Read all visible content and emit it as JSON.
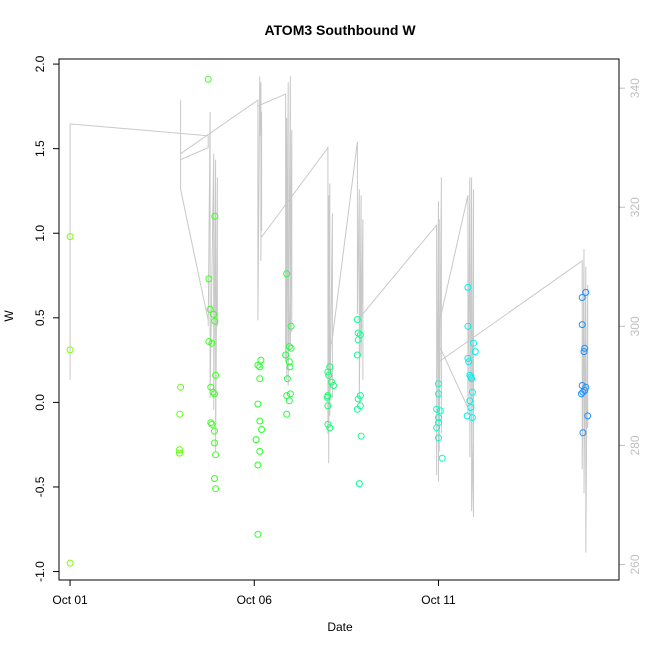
{
  "chart_data": {
    "type": "scatter",
    "title": "ATOM3 Southbound W",
    "xlabel": "Date",
    "ylabel": "W",
    "x_ticks": [
      "Oct 01",
      "Oct 06",
      "Oct 11"
    ],
    "x_tick_values": [
      1,
      6,
      11
    ],
    "xlim": [
      0.7,
      15.9
    ],
    "ylim": [
      -1.05,
      2.03
    ],
    "y_ticks": [
      -1.0,
      -0.5,
      0.0,
      0.5,
      1.0,
      1.5,
      2.0
    ],
    "y_tick_labels": [
      "-1.0",
      "-0.5",
      "0.0",
      "0.5",
      "1.0",
      "1.5",
      "2.0"
    ],
    "y2_ticks": [
      260,
      280,
      300,
      320,
      340
    ],
    "y2lim": [
      257.4,
      344.9
    ],
    "y2_color": "#c0c0c0",
    "grid": false,
    "legend": "none",
    "points": [
      {
        "x": 1.0,
        "y": 0.98,
        "color": "#7fff00"
      },
      {
        "x": 1.0,
        "y": 0.31,
        "color": "#7fff00"
      },
      {
        "x": 1.0,
        "y": -0.95,
        "color": "#7fff00"
      },
      {
        "x": 4.0,
        "y": 0.09,
        "color": "#60ff10"
      },
      {
        "x": 3.98,
        "y": -0.07,
        "color": "#60ff10"
      },
      {
        "x": 3.97,
        "y": -0.28,
        "color": "#60ff10"
      },
      {
        "x": 3.97,
        "y": -0.3,
        "color": "#60ff10"
      },
      {
        "x": 4.75,
        "y": 1.91,
        "color": "#3dff1f"
      },
      {
        "x": 4.93,
        "y": 1.1,
        "color": "#3dff1f"
      },
      {
        "x": 4.77,
        "y": 0.73,
        "color": "#3dff1f"
      },
      {
        "x": 4.8,
        "y": 0.55,
        "color": "#3dff1f"
      },
      {
        "x": 4.9,
        "y": 0.52,
        "color": "#3dff1f"
      },
      {
        "x": 4.93,
        "y": 0.48,
        "color": "#3dff1f"
      },
      {
        "x": 4.77,
        "y": 0.36,
        "color": "#3dff1f"
      },
      {
        "x": 4.85,
        "y": 0.35,
        "color": "#3dff1f"
      },
      {
        "x": 4.95,
        "y": 0.16,
        "color": "#3dff1f"
      },
      {
        "x": 4.82,
        "y": 0.09,
        "color": "#3dff1f"
      },
      {
        "x": 4.88,
        "y": 0.06,
        "color": "#3dff1f"
      },
      {
        "x": 4.92,
        "y": 0.05,
        "color": "#3dff1f"
      },
      {
        "x": 4.82,
        "y": -0.12,
        "color": "#3dff1f"
      },
      {
        "x": 4.85,
        "y": -0.13,
        "color": "#3dff1f"
      },
      {
        "x": 4.92,
        "y": -0.17,
        "color": "#3dff1f"
      },
      {
        "x": 4.92,
        "y": -0.24,
        "color": "#3dff1f"
      },
      {
        "x": 4.95,
        "y": -0.31,
        "color": "#3dff1f"
      },
      {
        "x": 4.92,
        "y": -0.45,
        "color": "#3dff1f"
      },
      {
        "x": 4.95,
        "y": -0.51,
        "color": "#3dff1f"
      },
      {
        "x": 6.18,
        "y": 0.25,
        "color": "#2aff2a"
      },
      {
        "x": 6.1,
        "y": 0.22,
        "color": "#2aff2a"
      },
      {
        "x": 6.15,
        "y": 0.21,
        "color": "#2aff2a"
      },
      {
        "x": 6.15,
        "y": 0.14,
        "color": "#2aff2a"
      },
      {
        "x": 6.1,
        "y": -0.01,
        "color": "#2aff2a"
      },
      {
        "x": 6.15,
        "y": -0.11,
        "color": "#2aff2a"
      },
      {
        "x": 6.2,
        "y": -0.16,
        "color": "#2aff2a"
      },
      {
        "x": 6.05,
        "y": -0.22,
        "color": "#2aff2a"
      },
      {
        "x": 6.15,
        "y": -0.29,
        "color": "#2aff2a"
      },
      {
        "x": 6.1,
        "y": -0.37,
        "color": "#2aff2a"
      },
      {
        "x": 6.1,
        "y": -0.78,
        "color": "#2aff2a"
      },
      {
        "x": 6.88,
        "y": 0.76,
        "color": "#20ff40"
      },
      {
        "x": 7.0,
        "y": 0.45,
        "color": "#20ff40"
      },
      {
        "x": 6.95,
        "y": 0.33,
        "color": "#20ff40"
      },
      {
        "x": 7.0,
        "y": 0.32,
        "color": "#20ff40"
      },
      {
        "x": 6.85,
        "y": 0.28,
        "color": "#20ff40"
      },
      {
        "x": 6.95,
        "y": 0.24,
        "color": "#20ff40"
      },
      {
        "x": 6.97,
        "y": 0.21,
        "color": "#20ff40"
      },
      {
        "x": 6.9,
        "y": 0.14,
        "color": "#20ff40"
      },
      {
        "x": 6.88,
        "y": 0.04,
        "color": "#20ff40"
      },
      {
        "x": 6.98,
        "y": 0.05,
        "color": "#20ff40"
      },
      {
        "x": 6.95,
        "y": 0.01,
        "color": "#20ff40"
      },
      {
        "x": 6.88,
        "y": -0.07,
        "color": "#20ff40"
      },
      {
        "x": 8.05,
        "y": 0.21,
        "color": "#14ff70"
      },
      {
        "x": 8.0,
        "y": 0.18,
        "color": "#14ff70"
      },
      {
        "x": 8.02,
        "y": 0.16,
        "color": "#14ff70"
      },
      {
        "x": 8.1,
        "y": 0.12,
        "color": "#14ff70"
      },
      {
        "x": 8.15,
        "y": 0.1,
        "color": "#14ff70"
      },
      {
        "x": 7.98,
        "y": 0.03,
        "color": "#14ff70"
      },
      {
        "x": 8.0,
        "y": 0.04,
        "color": "#14ff70"
      },
      {
        "x": 8.0,
        "y": -0.02,
        "color": "#14ff70"
      },
      {
        "x": 8.0,
        "y": -0.13,
        "color": "#14ff70"
      },
      {
        "x": 8.05,
        "y": -0.15,
        "color": "#14ff70"
      },
      {
        "x": 8.8,
        "y": 0.49,
        "color": "#0fff90"
      },
      {
        "x": 8.82,
        "y": 0.41,
        "color": "#0fff90"
      },
      {
        "x": 8.88,
        "y": 0.4,
        "color": "#0fff90"
      },
      {
        "x": 8.82,
        "y": 0.37,
        "color": "#0fff90"
      },
      {
        "x": 8.8,
        "y": 0.28,
        "color": "#0fff90"
      },
      {
        "x": 8.88,
        "y": 0.04,
        "color": "#0fff90"
      },
      {
        "x": 8.82,
        "y": 0.02,
        "color": "#0fff90"
      },
      {
        "x": 8.88,
        "y": -0.02,
        "color": "#0fff90"
      },
      {
        "x": 8.8,
        "y": -0.04,
        "color": "#0fff90"
      },
      {
        "x": 8.9,
        "y": -0.2,
        "color": "#0fff90"
      },
      {
        "x": 8.85,
        "y": -0.48,
        "color": "#0fff90"
      },
      {
        "x": 11.0,
        "y": 0.11,
        "color": "#00ffc8"
      },
      {
        "x": 11.0,
        "y": 0.05,
        "color": "#00ffc8"
      },
      {
        "x": 10.95,
        "y": -0.04,
        "color": "#00ffc8"
      },
      {
        "x": 11.05,
        "y": -0.05,
        "color": "#00ffc8"
      },
      {
        "x": 11.0,
        "y": -0.09,
        "color": "#00ffc8"
      },
      {
        "x": 11.0,
        "y": -0.12,
        "color": "#00ffc8"
      },
      {
        "x": 10.95,
        "y": -0.15,
        "color": "#00ffc8"
      },
      {
        "x": 11.0,
        "y": -0.21,
        "color": "#00ffc8"
      },
      {
        "x": 11.1,
        "y": -0.33,
        "color": "#00ffc8"
      },
      {
        "x": 11.8,
        "y": 0.68,
        "color": "#00f0f0"
      },
      {
        "x": 11.8,
        "y": 0.45,
        "color": "#00f0f0"
      },
      {
        "x": 11.95,
        "y": 0.35,
        "color": "#00f0f0"
      },
      {
        "x": 12.0,
        "y": 0.3,
        "color": "#00f0f0"
      },
      {
        "x": 11.8,
        "y": 0.26,
        "color": "#00f0f0"
      },
      {
        "x": 11.82,
        "y": 0.24,
        "color": "#00f0f0"
      },
      {
        "x": 11.85,
        "y": 0.16,
        "color": "#00f0f0"
      },
      {
        "x": 11.88,
        "y": 0.15,
        "color": "#00f0f0"
      },
      {
        "x": 11.9,
        "y": 0.14,
        "color": "#00f0f0"
      },
      {
        "x": 11.92,
        "y": 0.06,
        "color": "#00f0f0"
      },
      {
        "x": 11.85,
        "y": 0.01,
        "color": "#00f0f0"
      },
      {
        "x": 11.88,
        "y": -0.03,
        "color": "#00f0f0"
      },
      {
        "x": 11.78,
        "y": -0.08,
        "color": "#00f0f0"
      },
      {
        "x": 11.92,
        "y": -0.09,
        "color": "#00f0f0"
      },
      {
        "x": 14.9,
        "y": 0.62,
        "color": "#1e90ff"
      },
      {
        "x": 15.0,
        "y": 0.65,
        "color": "#1e90ff"
      },
      {
        "x": 14.9,
        "y": 0.46,
        "color": "#1e90ff"
      },
      {
        "x": 14.97,
        "y": 0.32,
        "color": "#1e90ff"
      },
      {
        "x": 14.95,
        "y": 0.3,
        "color": "#1e90ff"
      },
      {
        "x": 14.9,
        "y": 0.1,
        "color": "#1e90ff"
      },
      {
        "x": 15.0,
        "y": 0.09,
        "color": "#1e90ff"
      },
      {
        "x": 14.92,
        "y": 0.06,
        "color": "#1e90ff"
      },
      {
        "x": 14.97,
        "y": 0.07,
        "color": "#1e90ff"
      },
      {
        "x": 14.88,
        "y": 0.05,
        "color": "#1e90ff"
      },
      {
        "x": 15.05,
        "y": -0.08,
        "color": "#1e90ff"
      },
      {
        "x": 14.92,
        "y": -0.18,
        "color": "#1e90ff"
      }
    ],
    "secondary_line": {
      "color": "#c8c8c8",
      "axis": "right",
      "segments": [
        [
          [
            1.0,
            291
          ],
          [
            1.0,
            334
          ],
          [
            4.75,
            332
          ],
          [
            4.75,
            330
          ],
          [
            4.0,
            328
          ],
          [
            4.0,
            338
          ],
          [
            4.0,
            323
          ],
          [
            4.75,
            301
          ]
        ],
        [
          [
            4.75,
            300
          ],
          [
            4.8,
            336
          ],
          [
            4.8,
            288
          ],
          [
            4.9,
            329
          ],
          [
            4.9,
            286
          ],
          [
            4.95,
            328
          ],
          [
            4.95,
            279
          ],
          [
            5.0,
            325
          ],
          [
            5.0,
            300
          ]
        ],
        [
          [
            4.0,
            329
          ],
          [
            6.1,
            338
          ],
          [
            6.1,
            301
          ],
          [
            6.15,
            342
          ],
          [
            6.15,
            332
          ],
          [
            6.18,
            341
          ],
          [
            6.18,
            311
          ],
          [
            6.2,
            336
          ],
          [
            6.2,
            316
          ]
        ],
        [
          [
            6.1,
            337
          ],
          [
            6.85,
            339
          ],
          [
            6.85,
            294
          ],
          [
            6.88,
            335
          ],
          [
            6.88,
            291
          ],
          [
            6.92,
            341
          ],
          [
            6.92,
            290
          ],
          [
            6.98,
            342
          ],
          [
            6.98,
            297
          ],
          [
            7.02,
            333
          ],
          [
            7.02,
            299
          ]
        ],
        [
          [
            6.2,
            315
          ],
          [
            8.0,
            330
          ],
          [
            8.0,
            282
          ],
          [
            8.02,
            322
          ],
          [
            8.02,
            277
          ],
          [
            8.05,
            324
          ],
          [
            8.05,
            285
          ],
          [
            8.12,
            319
          ],
          [
            8.12,
            288
          ]
        ],
        [
          [
            6.92,
            313
          ],
          [
            6.97,
            296
          ]
        ],
        [
          [
            8.1,
            297
          ],
          [
            8.8,
            331
          ],
          [
            8.8,
            302
          ],
          [
            8.85,
            323
          ],
          [
            8.85,
            287
          ],
          [
            8.9,
            322
          ],
          [
            8.9,
            295
          ],
          [
            8.95,
            318
          ],
          [
            8.95,
            291
          ]
        ],
        [
          [
            8.8,
            301
          ],
          [
            10.95,
            317
          ],
          [
            10.95,
            275
          ],
          [
            11.0,
            321
          ],
          [
            11.0,
            274
          ],
          [
            11.02,
            318
          ],
          [
            11.02,
            279
          ],
          [
            11.08,
            325
          ],
          [
            11.08,
            282
          ]
        ],
        [
          [
            11.0,
            300
          ],
          [
            11.8,
            322
          ],
          [
            11.8,
            285
          ],
          [
            11.85,
            325
          ],
          [
            11.85,
            278
          ],
          [
            11.9,
            325
          ],
          [
            11.9,
            269
          ],
          [
            11.95,
            323
          ],
          [
            11.95,
            268
          ]
        ],
        [
          [
            11.95,
            268
          ],
          [
            11.9,
            285
          ],
          [
            11.0,
            297
          ]
        ],
        [
          [
            11.0,
            294
          ],
          [
            14.9,
            311
          ],
          [
            14.9,
            276
          ],
          [
            14.95,
            313
          ],
          [
            14.95,
            272
          ],
          [
            15.0,
            310
          ],
          [
            15.0,
            262
          ],
          [
            15.05,
            307
          ],
          [
            15.05,
            283
          ]
        ]
      ]
    }
  }
}
